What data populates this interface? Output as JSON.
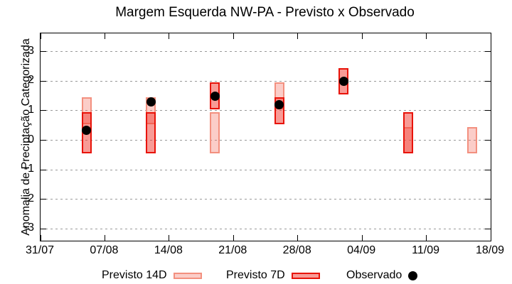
{
  "title": "Margem Esquerda NW-PA - Previsto x Observado",
  "chart_data": {
    "type": "range-bar-with-scatter",
    "title": "Margem Esquerda NW-PA - Previsto x Observado",
    "xlabel": "",
    "ylabel": "Anomalia de Preciptação Categorizada",
    "x_tick_labels": [
      "31/07",
      "07/08",
      "14/08",
      "21/08",
      "28/08",
      "04/09",
      "11/09",
      "18/09"
    ],
    "x_tick_days": [
      0,
      7,
      14,
      21,
      28,
      35,
      42,
      49
    ],
    "y_ticks": [
      -3,
      -2,
      -1,
      0,
      1,
      2,
      3
    ],
    "ylim": [
      -3.4,
      3.62
    ],
    "grid": "horizontal dotted at integer y values",
    "legend_position": "bottom outside plot",
    "series": [
      {
        "name": "Previsto 14D",
        "type": "range-box",
        "points": [
          {
            "date": "05/08",
            "day": 5,
            "low": 0.55,
            "high": 1.45
          },
          {
            "date": "12/08",
            "day": 12,
            "low": 0.55,
            "high": 1.45
          },
          {
            "date": "19/08",
            "day": 19,
            "low": -0.45,
            "high": 0.95
          },
          {
            "date": "26/08",
            "day": 26,
            "low": 1.05,
            "high": 1.95
          },
          {
            "date": "09/09",
            "day": 40,
            "low": -0.45,
            "high": 0.45
          },
          {
            "date": "16/09",
            "day": 47,
            "low": -0.45,
            "high": 0.45
          }
        ]
      },
      {
        "name": "Previsto 7D",
        "type": "range-box",
        "points": [
          {
            "date": "05/08",
            "day": 5,
            "low": -0.45,
            "high": 0.95
          },
          {
            "date": "12/08",
            "day": 12,
            "low": -0.45,
            "high": 0.95
          },
          {
            "date": "19/08",
            "day": 19,
            "low": 1.05,
            "high": 1.95
          },
          {
            "date": "26/08",
            "day": 26,
            "low": 0.55,
            "high": 1.45
          },
          {
            "date": "02/09",
            "day": 33,
            "low": 1.55,
            "high": 2.45
          },
          {
            "date": "09/09",
            "day": 40,
            "low": -0.45,
            "high": 0.95
          }
        ]
      },
      {
        "name": "Observado",
        "type": "scatter",
        "points": [
          {
            "date": "05/08",
            "day": 5,
            "value": 0.35
          },
          {
            "date": "12/08",
            "day": 12,
            "value": 1.3
          },
          {
            "date": "19/08",
            "day": 19,
            "value": 1.5
          },
          {
            "date": "26/08",
            "day": 26,
            "value": 1.2
          },
          {
            "date": "02/09",
            "day": 33,
            "value": 2.0
          }
        ]
      }
    ]
  },
  "legend": {
    "items": [
      {
        "label": "Previsto 14D",
        "swatch": "box-14d"
      },
      {
        "label": "Previsto 7D",
        "swatch": "box-7d"
      },
      {
        "label": "Observado",
        "swatch": "dot"
      }
    ]
  },
  "colors": {
    "p14_fill": "rgba(243,112,96,0.35)",
    "p14_border": "#f3907f",
    "p7_fill": "rgba(242,56,45,0.5)",
    "p7_border": "#e81309",
    "observado": "#000000",
    "grid": "#999999",
    "axis": "#000000",
    "background": "#ffffff"
  }
}
